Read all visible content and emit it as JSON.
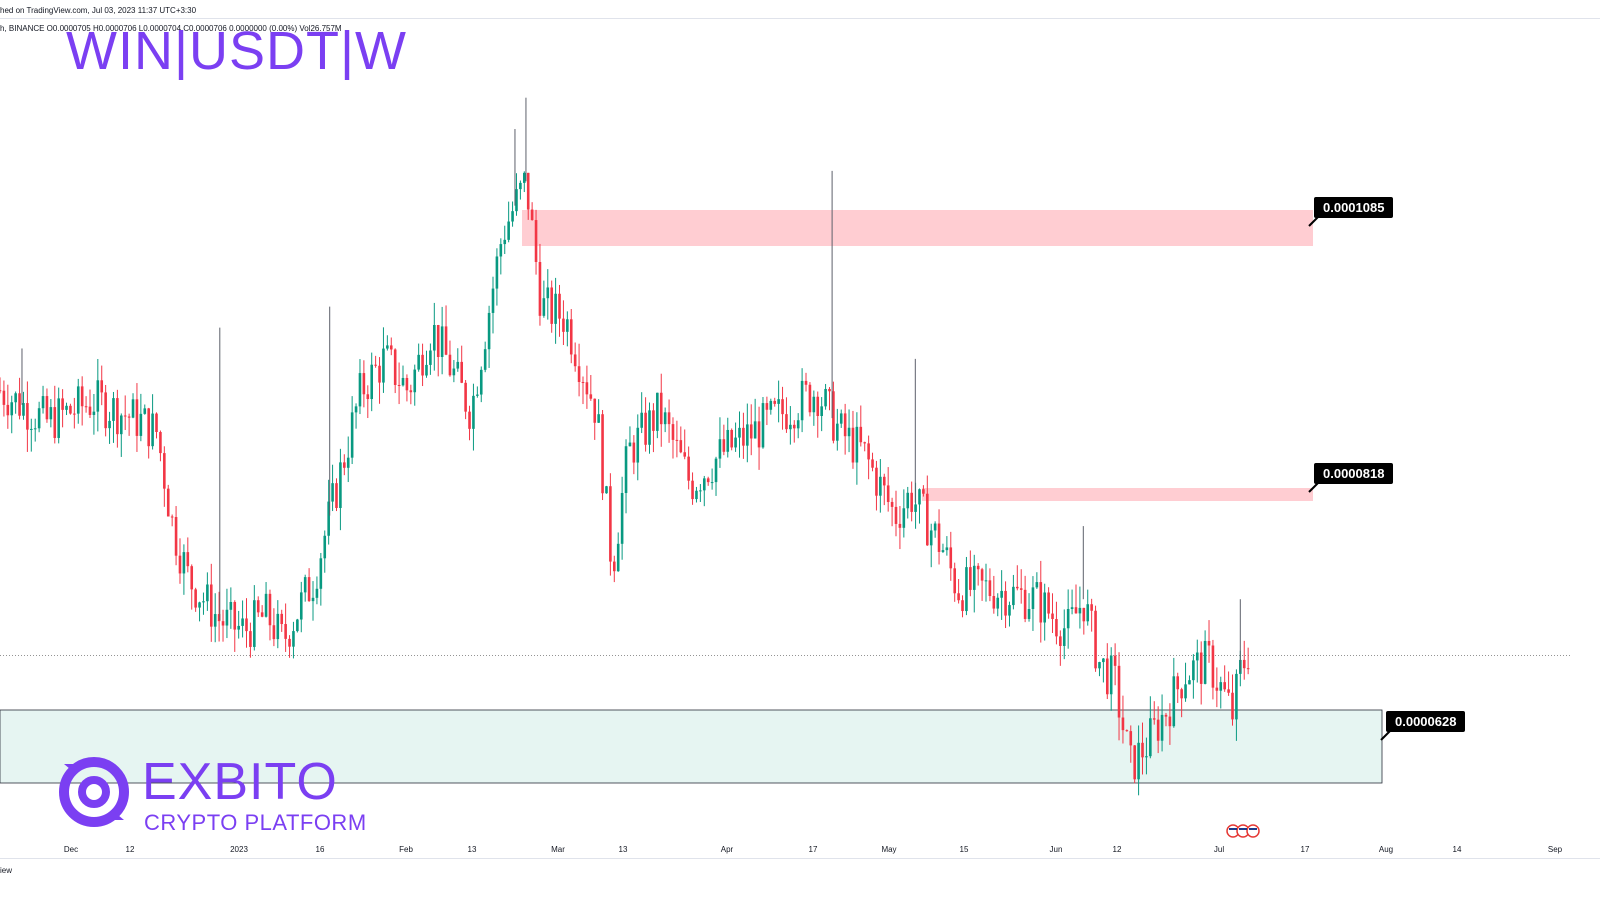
{
  "header": {
    "published": "hed on TradingView.com, Jul 03, 2023 11:37 UTC+3:30",
    "symbol_line": "h, BINANCE  O0.0000705  H0.0000706  L0.0000704  C0.0000706  0.0000000 (0.00%)  Vol26.757M"
  },
  "watermark": "WIN|USDT|W",
  "logo": {
    "name": "EXBITO",
    "tagline": "CRYPTO PLATFORM",
    "icon": "exbito-logo-icon",
    "color": "#7b3ff2"
  },
  "footer_text": "iew",
  "flag_icon": "us-flag-event-icon",
  "colors": {
    "up_candle": "#089981",
    "down_candle": "#f23645",
    "resistance_zone": "#ffcdd2",
    "support_zone": "#e6f5f2",
    "support_border": "#2a2e39",
    "label_bg": "#000000"
  },
  "chart_data": {
    "type": "candlestick",
    "title": "WIN|USDT|W",
    "x_tick_labels": [
      "Dec",
      "12",
      "2023",
      "16",
      "Feb",
      "13",
      "Mar",
      "13",
      "Apr",
      "17",
      "May",
      "15",
      "Jun",
      "12",
      "Jul",
      "17",
      "Aug",
      "14",
      "Sep"
    ],
    "zones": [
      {
        "kind": "resistance",
        "label": "0.0001085",
        "value": 0.0001085
      },
      {
        "kind": "resistance",
        "label": "0.0000818",
        "value": 8.18e-05
      },
      {
        "kind": "support",
        "label": "0.0000628",
        "value": 6.28e-05
      }
    ],
    "last_price": 7.06e-05,
    "price_path": [
      [
        0,
        9.6e-05
      ],
      [
        0.03,
        9.3e-05
      ],
      [
        0.06,
        9.5e-05
      ],
      [
        0.09,
        9.3e-05
      ],
      [
        0.1,
        9.2e-05
      ],
      [
        0.11,
        8.3e-05
      ],
      [
        0.12,
        7.8e-05
      ],
      [
        0.14,
        7.4e-05
      ],
      [
        0.155,
        7.3e-05
      ],
      [
        0.17,
        7.45e-05
      ],
      [
        0.18,
        7.2e-05
      ],
      [
        0.2,
        7.8e-05
      ],
      [
        0.215,
        8.7e-05
      ],
      [
        0.23,
        9.6e-05
      ],
      [
        0.245,
        9.9e-05
      ],
      [
        0.26,
        9.6e-05
      ],
      [
        0.275,
        0.000102
      ],
      [
        0.3,
        9.4e-05
      ],
      [
        0.32,
        0.000111
      ],
      [
        0.335,
        0.000116
      ],
      [
        0.345,
        0.000104
      ],
      [
        0.36,
        0.000103
      ],
      [
        0.38,
        9.4e-05
      ],
      [
        0.39,
        7.9e-05
      ],
      [
        0.4,
        9e-05
      ],
      [
        0.42,
        9.4e-05
      ],
      [
        0.44,
        8.7e-05
      ],
      [
        0.46,
        9e-05
      ],
      [
        0.48,
        9.2e-05
      ],
      [
        0.5,
        9.4e-05
      ],
      [
        0.52,
        9.6e-05
      ],
      [
        0.535,
        9.2e-05
      ],
      [
        0.55,
        9e-05
      ],
      [
        0.57,
        8.4e-05
      ],
      [
        0.58,
        8.6e-05
      ],
      [
        0.6,
        8.1e-05
      ],
      [
        0.61,
        7.7e-05
      ],
      [
        0.63,
        7.7e-05
      ],
      [
        0.66,
        7.6e-05
      ],
      [
        0.68,
        7.3e-05
      ],
      [
        0.69,
        7.6e-05
      ],
      [
        0.7,
        7e-05
      ],
      [
        0.71,
        6.8e-05
      ],
      [
        0.72,
        6e-05
      ],
      [
        0.73,
        6.2e-05
      ],
      [
        0.745,
        6.6e-05
      ],
      [
        0.755,
        6.9e-05
      ],
      [
        0.77,
        7e-05
      ],
      [
        0.785,
        6.5e-05
      ],
      [
        0.79,
        6.9e-05
      ],
      [
        0.795,
        7.1e-05
      ]
    ],
    "wicks": [
      [
        0.014,
        0.0001
      ],
      [
        0.14,
        0.000102
      ],
      [
        0.21,
        0.000104
      ],
      [
        0.328,
        0.000121
      ],
      [
        0.335,
        0.000124
      ],
      [
        0.53,
        0.000117
      ],
      [
        0.583,
        9.9e-05
      ],
      [
        0.69,
        8.3e-05
      ],
      [
        0.79,
        7.6e-05
      ]
    ]
  }
}
